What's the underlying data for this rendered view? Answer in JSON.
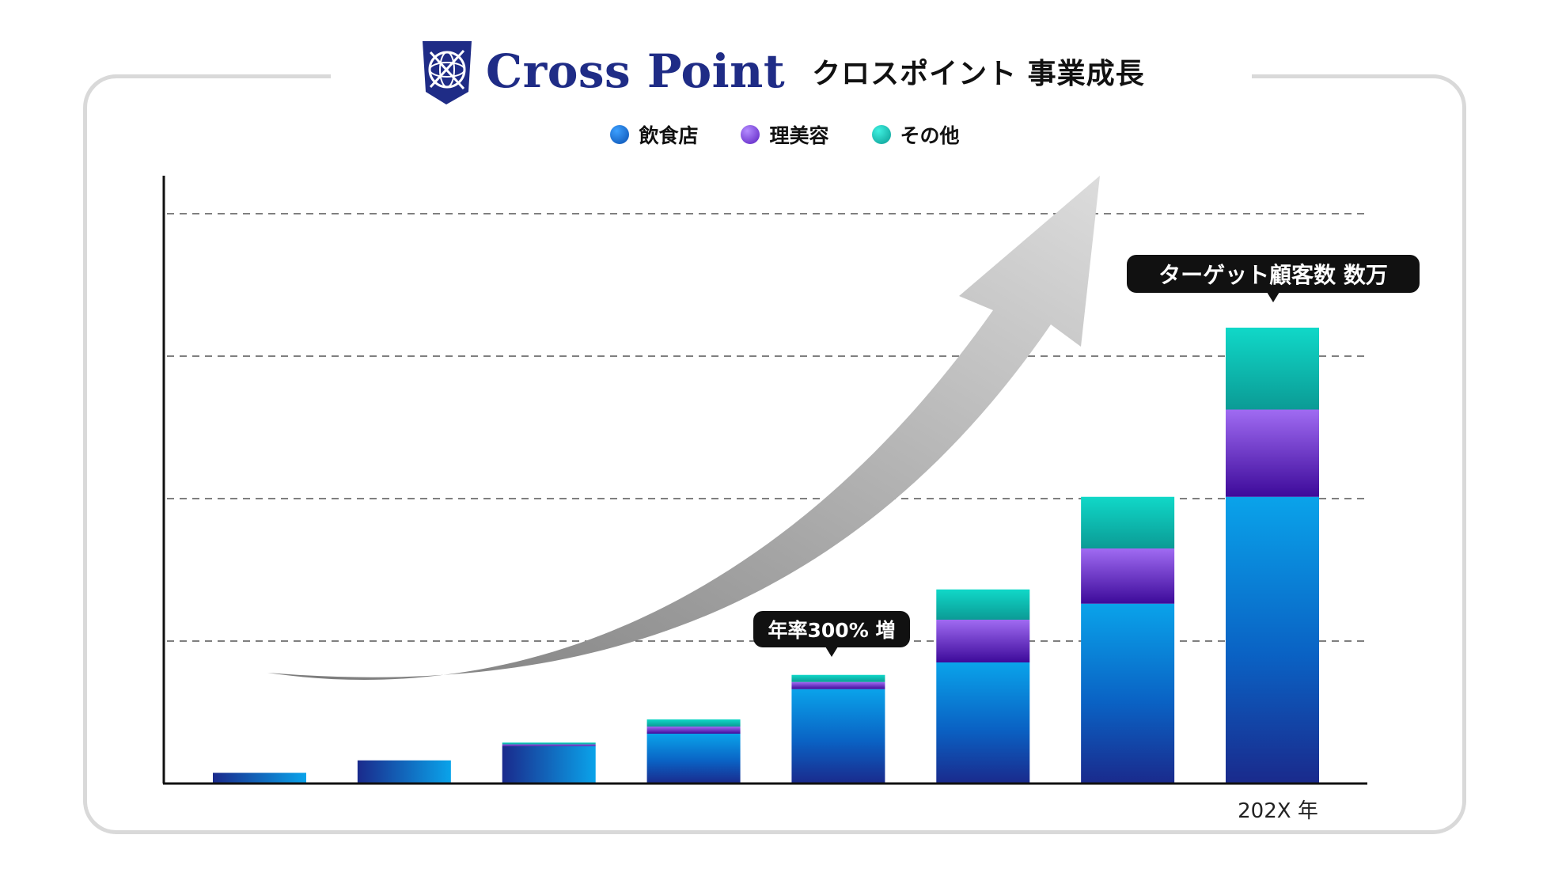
{
  "header": {
    "logo_name": "Cross Point",
    "subtitle": "クロスポイント 事業成長"
  },
  "legend": [
    {
      "label": "飲食店",
      "color": "#0a6fd0"
    },
    {
      "label": "理美容",
      "color": "#7a3fe0"
    },
    {
      "label": "その他",
      "color": "#10c7bd"
    }
  ],
  "callouts": {
    "growth": "年率300% 増",
    "target": "ターゲット顧客数 数万"
  },
  "chart_data": {
    "type": "bar",
    "stacked": true,
    "grid": "horizontal-dashed",
    "growth_arrow": true,
    "categories": [
      "",
      "",
      "",
      "",
      "",
      "",
      "",
      "202X 年"
    ],
    "series": [
      {
        "name": "飲食店",
        "values": [
          0.6,
          1.3,
          2.1,
          2.8,
          5.3,
          6.8,
          10.1,
          16.1
        ]
      },
      {
        "name": "理美容",
        "values": [
          0,
          0,
          0.1,
          0.4,
          0.4,
          2.4,
          3.1,
          4.9
        ]
      },
      {
        "name": "その他",
        "values": [
          0,
          0,
          0.1,
          0.4,
          0.4,
          1.7,
          2.9,
          4.6
        ]
      }
    ],
    "ylim": [
      0,
      32
    ],
    "y_gridlines": [
      8,
      16,
      24,
      32
    ],
    "colors": {
      "飲食店": [
        "#1a2a8c",
        "#0aa3ea"
      ],
      "理美容": [
        "#3d0a9a",
        "#a06bf2"
      ],
      "その他": [
        "#0b9b95",
        "#10d8c8"
      ]
    }
  }
}
